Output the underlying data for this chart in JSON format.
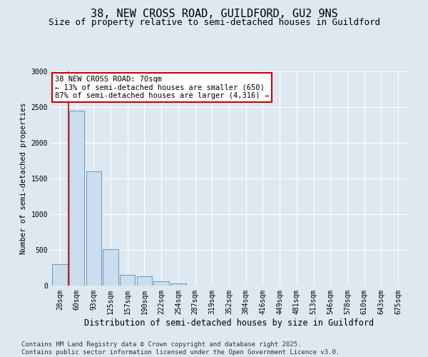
{
  "title1": "38, NEW CROSS ROAD, GUILDFORD, GU2 9NS",
  "title2": "Size of property relative to semi-detached houses in Guildford",
  "xlabel": "Distribution of semi-detached houses by size in Guildford",
  "ylabel": "Number of semi-detached properties",
  "categories": [
    "28sqm",
    "60sqm",
    "93sqm",
    "125sqm",
    "157sqm",
    "190sqm",
    "222sqm",
    "254sqm",
    "287sqm",
    "319sqm",
    "352sqm",
    "384sqm",
    "416sqm",
    "449sqm",
    "481sqm",
    "513sqm",
    "546sqm",
    "578sqm",
    "610sqm",
    "643sqm",
    "675sqm"
  ],
  "values": [
    300,
    2450,
    1600,
    510,
    150,
    130,
    60,
    30,
    5,
    2,
    1,
    0,
    0,
    0,
    0,
    0,
    0,
    0,
    0,
    0,
    0
  ],
  "bar_color": "#ccdded",
  "bar_edge_color": "#6699bb",
  "red_line_x": 0.5,
  "annotation_text": "38 NEW CROSS ROAD: 70sqm\n← 13% of semi-detached houses are smaller (650)\n87% of semi-detached houses are larger (4,316) →",
  "annotation_box_color": "#ffffff",
  "annotation_box_edge": "#cc0000",
  "red_line_color": "#cc0000",
  "ylim": [
    0,
    3000
  ],
  "yticks": [
    0,
    500,
    1000,
    1500,
    2000,
    2500,
    3000
  ],
  "bg_color": "#dde8f0",
  "plot_bg": "#dde8f0",
  "footer1": "Contains HM Land Registry data © Crown copyright and database right 2025.",
  "footer2": "Contains public sector information licensed under the Open Government Licence v3.0.",
  "title1_fontsize": 11,
  "title2_fontsize": 9,
  "xlabel_fontsize": 8.5,
  "ylabel_fontsize": 7.5,
  "tick_fontsize": 7,
  "footer_fontsize": 6.5,
  "annot_fontsize": 7.5
}
